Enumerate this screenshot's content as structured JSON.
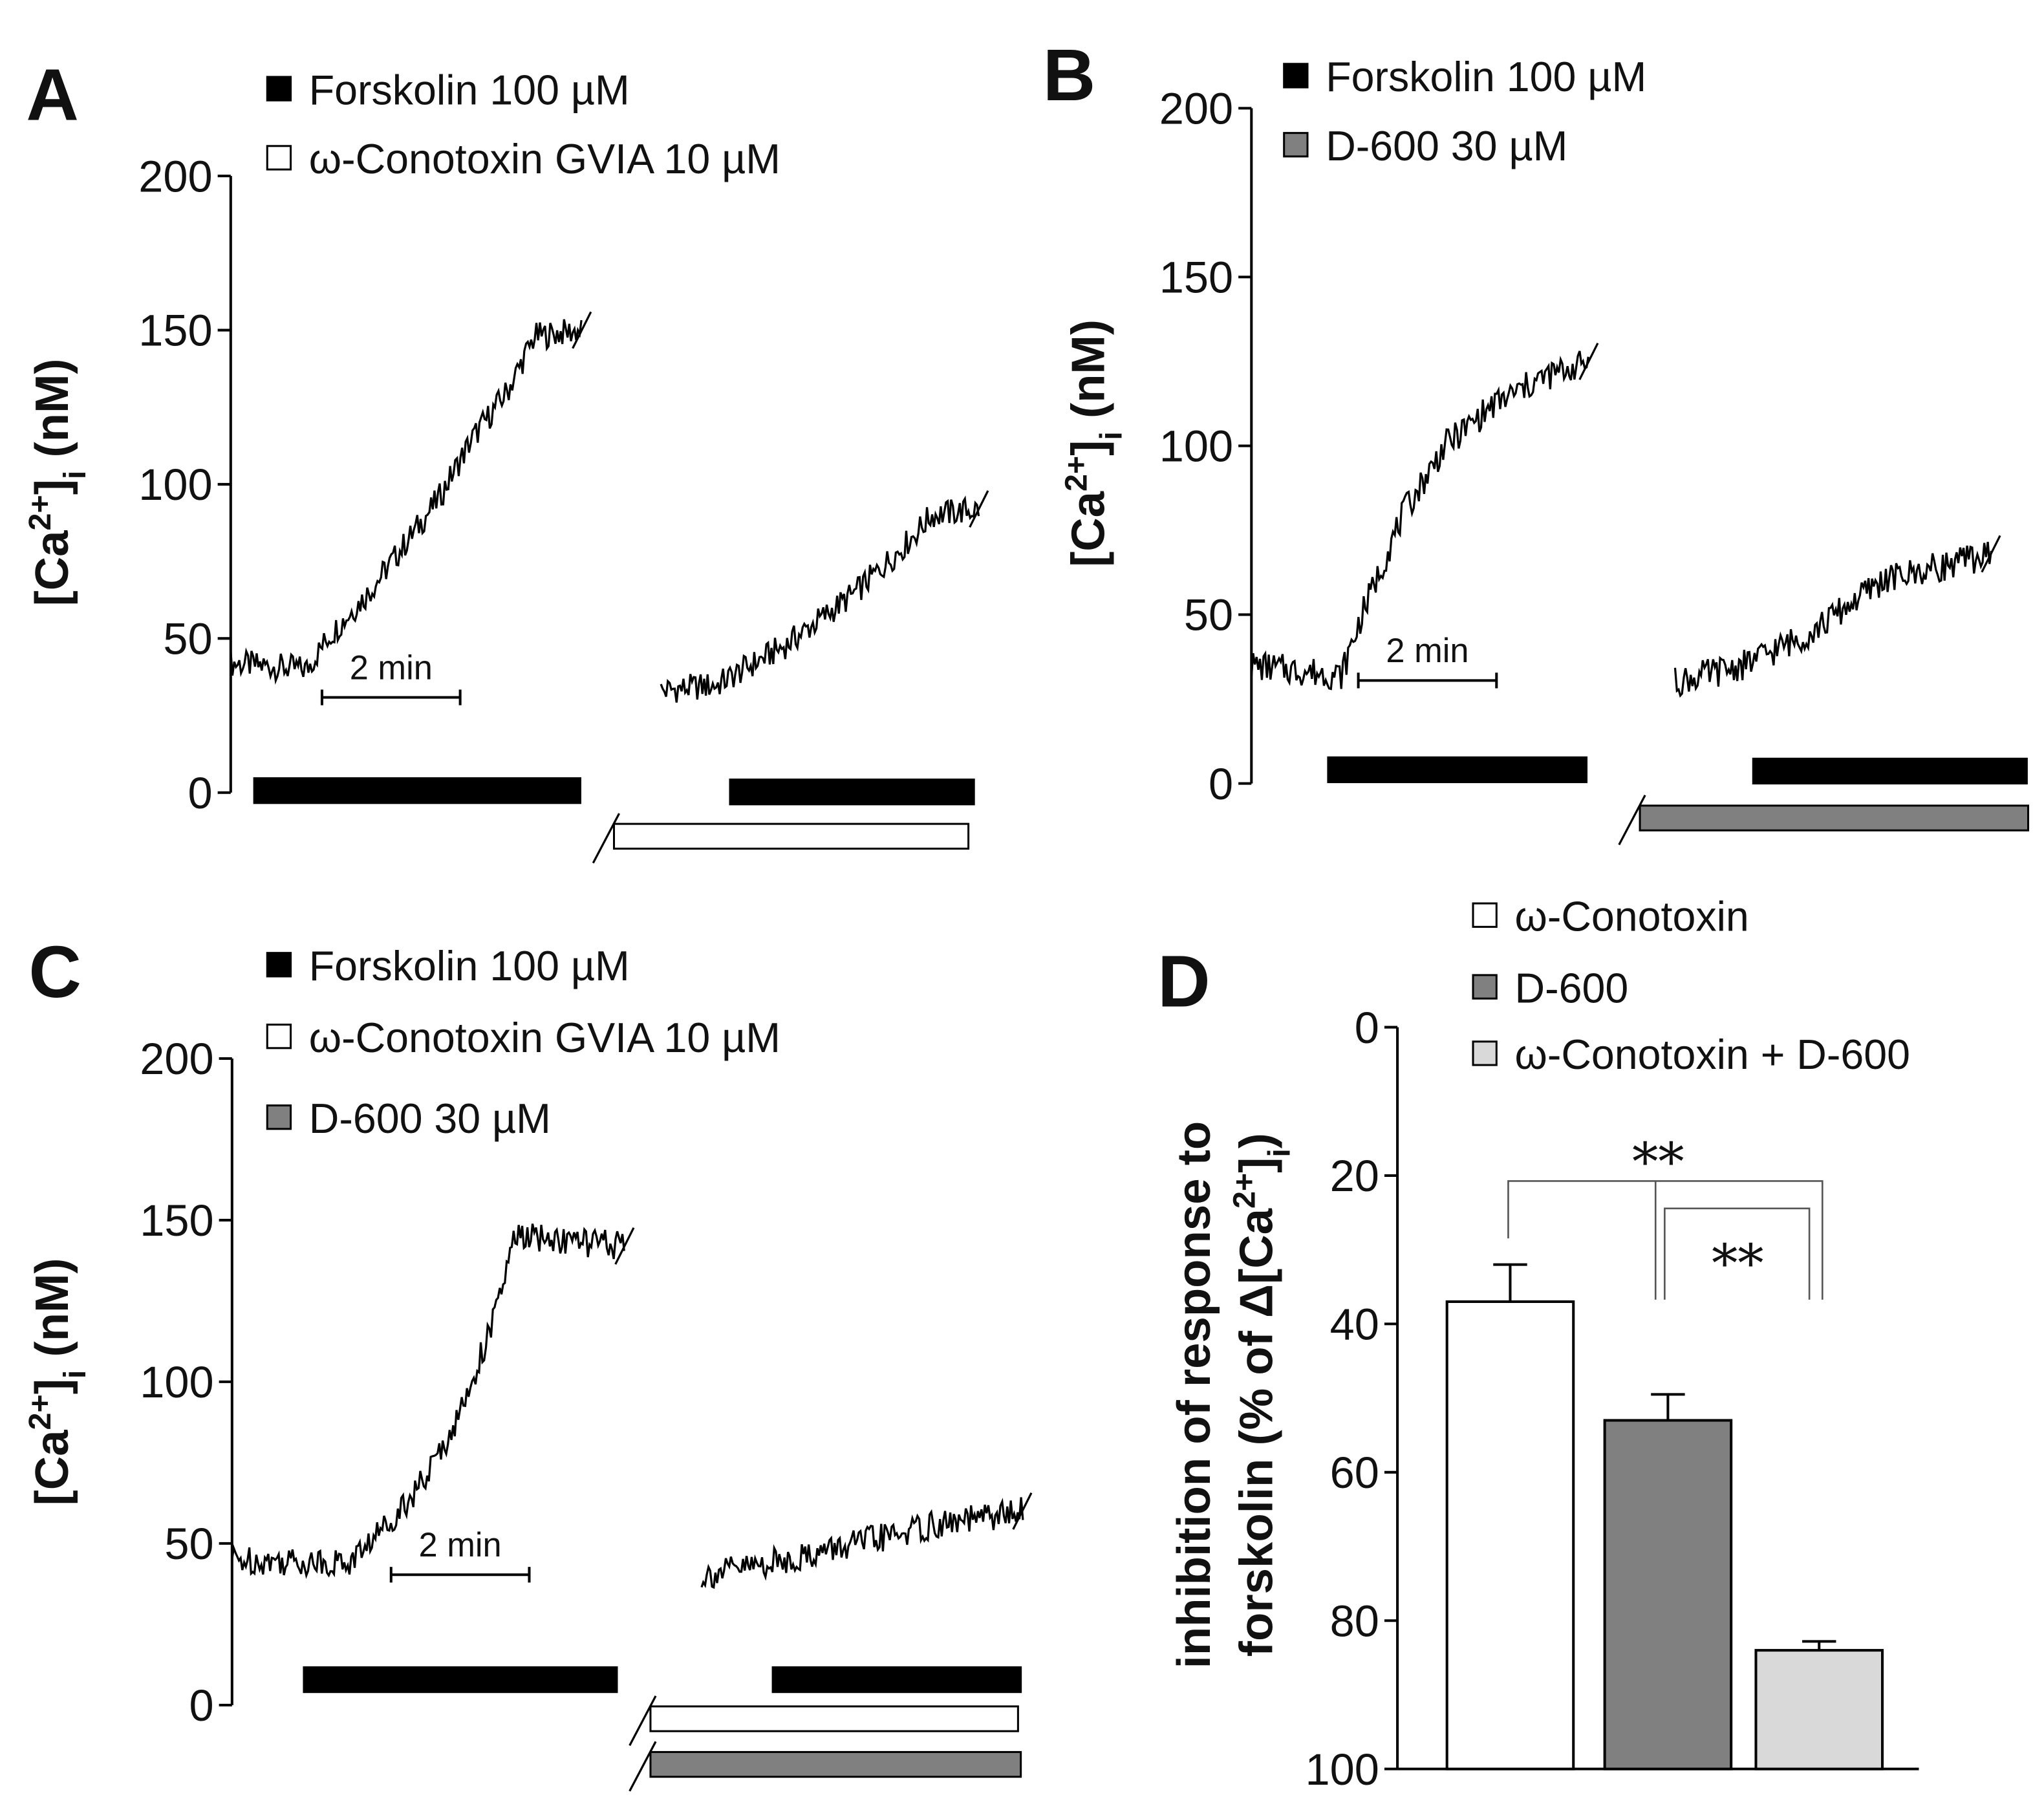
{
  "colors": {
    "forskolin": "#000000",
    "conotoxin": "#ffffff",
    "d600": "#808080",
    "combo": "#d9d9d9"
  },
  "chart_data": [
    {
      "panel": "A",
      "type": "line",
      "ylabel": {
        "a": "[Ca",
        "sup": "2+",
        "b": "]",
        "sub": "i",
        "c": " (nM)"
      },
      "ylim": [
        0,
        200
      ],
      "yticks": [
        "0",
        "50",
        "100",
        "150",
        "200"
      ],
      "legend": [
        {
          "key": "forskolin",
          "label": "Forskolin 100 µM"
        },
        {
          "key": "conotoxin",
          "label": "ω-Conotoxin GVIA 10 µM"
        }
      ],
      "scale_bar": "2 min",
      "segments": [
        {
          "trace": [
            [
              0,
              42
            ],
            [
              1.1,
              40
            ],
            [
              1.4,
              50
            ],
            [
              2.0,
              65
            ],
            [
              3.0,
              95
            ],
            [
              3.5,
              115
            ],
            [
              4.0,
              130
            ],
            [
              4.4,
              148
            ],
            [
              5.1,
              150
            ]
          ],
          "bars": [
            {
              "drug": "forskolin",
              "start": 0.34,
              "end": 5.06
            }
          ]
        },
        {
          "trace": [
            [
              0.68,
              33
            ],
            [
              1.5,
              35
            ],
            [
              2.5,
              48
            ],
            [
              3.5,
              65
            ],
            [
              4.2,
              80
            ],
            [
              4.6,
              90
            ],
            [
              5.3,
              92
            ]
          ],
          "bars": [
            {
              "drug": "forskolin",
              "start": 1.68,
              "end": 5.21
            },
            {
              "drug": "conotoxin",
              "start": 0,
              "end": 5.13
            }
          ]
        }
      ]
    },
    {
      "panel": "B",
      "type": "line",
      "ylabel": {
        "a": "[Ca",
        "sup": "2+",
        "b": "]",
        "sub": "i",
        "c": " (nM)"
      },
      "ylim": [
        0,
        200
      ],
      "yticks": [
        "0",
        "50",
        "100",
        "150",
        "200"
      ],
      "legend": [
        {
          "key": "forskolin",
          "label": "Forskolin 100 µM"
        },
        {
          "key": "d600",
          "label": "D-600 30 µM"
        }
      ],
      "scale_bar": "2 min",
      "segments": [
        {
          "trace": [
            [
              0,
              35
            ],
            [
              1.3,
              32
            ],
            [
              1.6,
              50
            ],
            [
              2.2,
              80
            ],
            [
              2.8,
              100
            ],
            [
              3.5,
              112
            ],
            [
              4.2,
              120
            ],
            [
              4.9,
              125
            ]
          ],
          "bars": [
            {
              "drug": "forskolin",
              "start": 1.11,
              "end": 4.85
            }
          ]
        },
        {
          "trace": [
            [
              0.51,
              30
            ],
            [
              1.5,
              35
            ],
            [
              2.5,
              45
            ],
            [
              3.5,
              60
            ],
            [
              4.5,
              65
            ],
            [
              5.1,
              68
            ]
          ],
          "bars": [
            {
              "drug": "forskolin",
              "start": 1.64,
              "end": 5.6
            },
            {
              "drug": "d600",
              "start": 0,
              "end": 5.62
            }
          ]
        }
      ]
    },
    {
      "panel": "C",
      "type": "line",
      "ylabel": {
        "a": "[Ca",
        "sup": "2+",
        "b": "]",
        "sub": "i",
        "c": " (nM)"
      },
      "ylim": [
        0,
        200
      ],
      "yticks": [
        "0",
        "50",
        "100",
        "150",
        "200"
      ],
      "legend": [
        {
          "key": "forskolin",
          "label": "Forskolin 100 µM"
        },
        {
          "key": "conotoxin",
          "label": "ω-Conotoxin GVIA 10 µM"
        },
        {
          "key": "d600",
          "label": "D-600 30 µM"
        }
      ],
      "scale_bar": "2 min",
      "segments": [
        {
          "trace": [
            [
              0,
              45
            ],
            [
              1.7,
              44
            ],
            [
              2.2,
              55
            ],
            [
              2.8,
              70
            ],
            [
              3.3,
              90
            ],
            [
              3.8,
              120
            ],
            [
              4.1,
              145
            ],
            [
              5.7,
              142
            ]
          ],
          "bars": [
            {
              "drug": "forskolin",
              "start": 1.04,
              "end": 5.57
            }
          ]
        },
        {
          "trace": [
            [
              0.74,
              40
            ],
            [
              2,
              45
            ],
            [
              3,
              50
            ],
            [
              4,
              55
            ],
            [
              5.4,
              60
            ]
          ],
          "bars": [
            {
              "drug": "forskolin",
              "start": 1.77,
              "end": 5.36
            },
            {
              "drug": "conotoxin",
              "start": 0,
              "end": 5.32
            },
            {
              "drug": "d600",
              "start": 0,
              "end": 5.36
            }
          ]
        }
      ]
    },
    {
      "panel": "D",
      "type": "bar",
      "ylabel_line1": "inhibition of response to",
      "ylabel_line2": {
        "a": "forskolin (% of Δ[Ca",
        "sup": "2+",
        "b": "]",
        "sub": "i",
        "c": ")"
      },
      "ylim": [
        0,
        100
      ],
      "inverted": true,
      "yticks": [
        "0",
        "20",
        "40",
        "60",
        "80",
        "100"
      ],
      "categories": [
        "ω-Conotoxin",
        "D-600",
        "ω-Conotoxin + D-600"
      ],
      "legend": [
        {
          "key": "conotoxin",
          "label": "ω-Conotoxin"
        },
        {
          "key": "d600",
          "label": "D-600"
        },
        {
          "key": "combo",
          "label": "ω-Conotoxin + D-600"
        }
      ],
      "values": [
        37,
        53,
        84
      ],
      "errors": [
        5,
        3.5,
        1.2
      ],
      "significance": [
        {
          "between": [
            0,
            2
          ],
          "label": "**"
        },
        {
          "between": [
            1,
            2
          ],
          "label": "**"
        }
      ]
    }
  ]
}
